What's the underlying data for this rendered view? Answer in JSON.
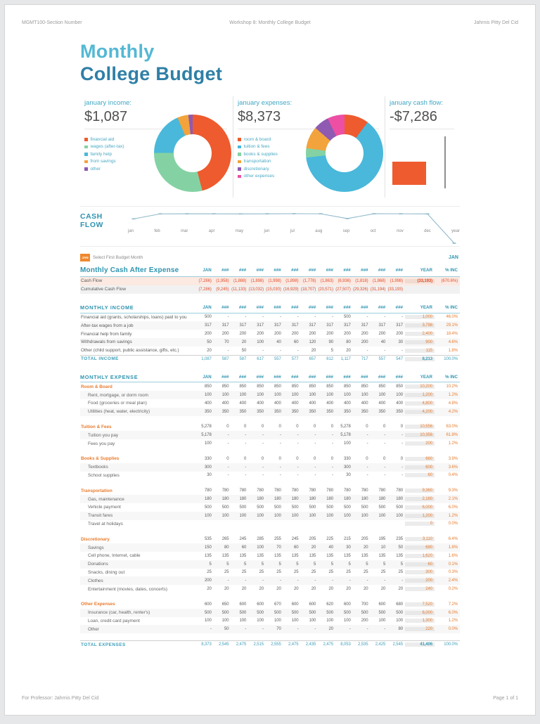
{
  "page_header": {
    "left": "MGMT100-Section Number",
    "center": "Workshop 8: Monthly College Budget",
    "right": "Jahrnis Pitty Del Cid"
  },
  "page_footer": {
    "left": "For Professor: Jahrnis Pitty Del Cid",
    "right": "Page 1 of 1"
  },
  "title": {
    "line1": "Monthly",
    "line2": "College Budget"
  },
  "controls": {
    "month_badge": "JAN",
    "select_label": "Select First Budget Month",
    "right_label": "JAN"
  },
  "chart_data": [
    {
      "id": "income_donut",
      "type": "pie",
      "title": "january income:",
      "total_label": "$1,087",
      "labels": [
        "financial aid",
        "wages (after-tax)",
        "family help",
        "from savings",
        "other"
      ],
      "values": [
        500,
        317,
        200,
        50,
        20
      ],
      "values_pct": [
        46.0,
        29.2,
        18.4,
        4.6,
        1.8
      ],
      "colors": [
        "#ee5b2e",
        "#84d2a4",
        "#49b8da",
        "#f2a33c",
        "#8e5ab2"
      ]
    },
    {
      "id": "expenses_donut",
      "type": "pie",
      "title": "january expenses:",
      "total_label": "$8,373",
      "labels": [
        "room & board",
        "tuition & fees",
        "books & supplies",
        "transportation",
        "discretionary",
        "other expenses"
      ],
      "values": [
        850,
        5278,
        330,
        780,
        535,
        600
      ],
      "values_pct": [
        10.2,
        63.0,
        3.9,
        9.3,
        6.4,
        7.2
      ],
      "colors": [
        "#ee5b2e",
        "#49b8da",
        "#84d2a4",
        "#f2a33c",
        "#8e5ab2",
        "#ec4fa3"
      ]
    },
    {
      "id": "cashflow_bar",
      "type": "bar",
      "title": "january cash flow:",
      "total_label": "-$7,286",
      "values": [
        -7286
      ],
      "color": "#ee5b2e"
    },
    {
      "id": "cashflow_line",
      "type": "line",
      "title": "CASH FLOW",
      "x_labels": [
        "jan",
        "feb",
        "mar",
        "apr",
        "may",
        "jun",
        "jul",
        "aug",
        "sep",
        "oct",
        "nov",
        "dec",
        "year"
      ],
      "values": [
        -7286,
        -1958,
        -1888,
        -1898,
        -1998,
        -1898,
        -1778,
        -1863,
        -6936,
        -1818,
        -1868,
        -1998,
        -33193
      ],
      "color": "#8fb9c9"
    }
  ],
  "table": {
    "columns": [
      "JAN",
      "###",
      "###",
      "###",
      "###",
      "###",
      "###",
      "###",
      "###",
      "###",
      "###",
      "###",
      "YEAR"
    ],
    "pct_header": "% INC",
    "sections": [
      {
        "title": "Monthly Cash After Expense",
        "rows": [
          {
            "type": "cf1",
            "label": "Cash Flow",
            "values": [
              "(7,286)",
              "(1,958)",
              "(1,888)",
              "(1,898)",
              "(1,998)",
              "(1,898)",
              "(1,778)",
              "(1,863)",
              "(6,936)",
              "(1,818)",
              "(1,868)",
              "(1,998)"
            ],
            "year": "(33,193)",
            "pct": "(670.6%)"
          },
          {
            "type": "cf2",
            "label": "Cumulative Cash Flow",
            "values": [
              "(7,286)",
              "(9,245)",
              "(11,133)",
              "(13,032)",
              "(15,030)",
              "(16,929)",
              "(18,707)",
              "(20,571)",
              "(27,507)",
              "(29,326)",
              "(31,194)",
              "(33,193)"
            ],
            "year": "",
            "pct": ""
          }
        ]
      },
      {
        "title": "MONTHLY INCOME",
        "rows": [
          {
            "type": "item",
            "label": "Financial aid (grants, scholarships, loans) paid to you",
            "values": [
              "500",
              "-",
              "-",
              "-",
              "-",
              "-",
              "-",
              "-",
              "500",
              "-",
              "-",
              "-"
            ],
            "year": "1,000",
            "pct": "46.0%"
          },
          {
            "type": "item",
            "label": "After-tax wages from a job",
            "values": [
              "317",
              "317",
              "317",
              "317",
              "317",
              "317",
              "317",
              "317",
              "317",
              "317",
              "317",
              "317"
            ],
            "year": "3,798",
            "pct": "29.1%"
          },
          {
            "type": "item",
            "label": "Financial help from family",
            "values": [
              "200",
              "200",
              "200",
              "200",
              "200",
              "200",
              "200",
              "200",
              "200",
              "200",
              "200",
              "200"
            ],
            "year": "2,400",
            "pct": "18.4%"
          },
          {
            "type": "item",
            "label": "Withdrawals from savings",
            "values": [
              "50",
              "70",
              "20",
              "100",
              "40",
              "60",
              "120",
              "90",
              "80",
              "200",
              "40",
              "30"
            ],
            "year": "900",
            "pct": "4.6%"
          },
          {
            "type": "item",
            "label": "Other (child support, public assistance, gifts, etc.)",
            "values": [
              "20",
              "-",
              "50",
              "-",
              "-",
              "-",
              "20",
              "5",
              "20",
              "-",
              "-",
              "-"
            ],
            "year": "115",
            "pct": "1.8%"
          },
          {
            "type": "total",
            "label": "TOTAL INCOME",
            "values": [
              "1,087",
              "587",
              "587",
              "617",
              "557",
              "577",
              "657",
              "612",
              "1,117",
              "717",
              "557",
              "547"
            ],
            "year": "8,213",
            "pct": "100.0%"
          }
        ]
      },
      {
        "title": "MONTHLY EXPENSE",
        "rows": [
          {
            "type": "cat",
            "label": "Room & Board",
            "values": [
              "850",
              "850",
              "850",
              "850",
              "850",
              "850",
              "850",
              "850",
              "850",
              "850",
              "850",
              "850"
            ],
            "year": "10,200",
            "pct": "10.2%"
          },
          {
            "type": "sub",
            "label": "Rent, mortgage, or dorm room",
            "values": [
              "100",
              "100",
              "100",
              "100",
              "100",
              "100",
              "100",
              "100",
              "100",
              "100",
              "100",
              "100"
            ],
            "year": "1,200",
            "pct": "1.2%"
          },
          {
            "type": "sub",
            "label": "Food (groceries or meal plan)",
            "values": [
              "400",
              "400",
              "400",
              "400",
              "400",
              "400",
              "400",
              "400",
              "400",
              "400",
              "400",
              "400"
            ],
            "year": "4,800",
            "pct": "4.8%"
          },
          {
            "type": "sub",
            "label": "Utilities (heat, water, electricity)",
            "values": [
              "350",
              "350",
              "350",
              "350",
              "350",
              "350",
              "350",
              "350",
              "350",
              "350",
              "350",
              "350"
            ],
            "year": "4,200",
            "pct": "4.2%"
          },
          {
            "type": "gap"
          },
          {
            "type": "cat",
            "label": "Tuition & Fees",
            "values": [
              "5,278",
              "0",
              "0",
              "0",
              "0",
              "0",
              "0",
              "0",
              "5,278",
              "0",
              "0",
              "0"
            ],
            "year": "10,556",
            "pct": "63.0%"
          },
          {
            "type": "sub",
            "label": "Tuition you pay",
            "values": [
              "5,178",
              "-",
              "-",
              "-",
              "-",
              "-",
              "-",
              "-",
              "5,178",
              "-",
              "-",
              "-"
            ],
            "year": "10,356",
            "pct": "61.8%"
          },
          {
            "type": "sub",
            "label": "Fees you pay",
            "values": [
              "100",
              "-",
              "-",
              "-",
              "-",
              "-",
              "-",
              "-",
              "100",
              "-",
              "-",
              "-"
            ],
            "year": "200",
            "pct": "1.2%"
          },
          {
            "type": "gap"
          },
          {
            "type": "cat",
            "label": "Books & Supplies",
            "values": [
              "330",
              "0",
              "0",
              "0",
              "0",
              "0",
              "0",
              "0",
              "330",
              "0",
              "0",
              "0"
            ],
            "year": "660",
            "pct": "3.9%"
          },
          {
            "type": "sub",
            "label": "Textbooks",
            "values": [
              "300",
              "-",
              "-",
              "-",
              "-",
              "-",
              "-",
              "-",
              "300",
              "-",
              "-",
              "-"
            ],
            "year": "600",
            "pct": "3.6%"
          },
          {
            "type": "sub",
            "label": "School supplies",
            "values": [
              "30",
              "-",
              "-",
              "-",
              "-",
              "-",
              "-",
              "-",
              "30",
              "-",
              "-",
              "-"
            ],
            "year": "60",
            "pct": "0.4%"
          },
          {
            "type": "gap"
          },
          {
            "type": "cat",
            "label": "Transportation",
            "values": [
              "780",
              "780",
              "780",
              "780",
              "780",
              "780",
              "780",
              "780",
              "780",
              "780",
              "780",
              "780"
            ],
            "year": "9,360",
            "pct": "9.3%"
          },
          {
            "type": "sub",
            "label": "Gas, maintenance",
            "values": [
              "180",
              "180",
              "180",
              "180",
              "180",
              "180",
              "180",
              "180",
              "180",
              "180",
              "180",
              "180"
            ],
            "year": "2,160",
            "pct": "2.1%"
          },
          {
            "type": "sub",
            "label": "Vehicle payment",
            "values": [
              "500",
              "500",
              "500",
              "500",
              "500",
              "500",
              "500",
              "500",
              "500",
              "500",
              "500",
              "500"
            ],
            "year": "6,000",
            "pct": "6.0%"
          },
          {
            "type": "sub",
            "label": "Transit fares",
            "values": [
              "100",
              "100",
              "100",
              "100",
              "100",
              "100",
              "100",
              "100",
              "100",
              "100",
              "100",
              "100"
            ],
            "year": "1,200",
            "pct": "1.2%"
          },
          {
            "type": "sub",
            "label": "Travel at holidays",
            "values": [
              "",
              "",
              "",
              "",
              "",
              "",
              "",
              "",
              "",
              "",
              "",
              ""
            ],
            "year": "0",
            "pct": "0.0%"
          },
          {
            "type": "gap"
          },
          {
            "type": "cat",
            "label": "Discretionary",
            "values": [
              "535",
              "265",
              "245",
              "285",
              "255",
              "245",
              "205",
              "225",
              "215",
              "205",
              "195",
              "235"
            ],
            "year": "3,110",
            "pct": "6.4%"
          },
          {
            "type": "sub",
            "label": "Savings",
            "values": [
              "150",
              "80",
              "60",
              "100",
              "70",
              "60",
              "20",
              "40",
              "30",
              "20",
              "10",
              "50"
            ],
            "year": "690",
            "pct": "1.8%"
          },
          {
            "type": "sub",
            "label": "Cell phone, Internet, cable",
            "values": [
              "135",
              "135",
              "135",
              "135",
              "135",
              "135",
              "135",
              "135",
              "135",
              "135",
              "135",
              "135"
            ],
            "year": "1,620",
            "pct": "1.6%"
          },
          {
            "type": "sub",
            "label": "Donations",
            "values": [
              "5",
              "5",
              "5",
              "5",
              "5",
              "5",
              "5",
              "5",
              "5",
              "5",
              "5",
              "5"
            ],
            "year": "60",
            "pct": "0.1%"
          },
          {
            "type": "sub",
            "label": "Snacks, dining out",
            "values": [
              "25",
              "25",
              "25",
              "25",
              "25",
              "25",
              "25",
              "25",
              "25",
              "25",
              "25",
              "25"
            ],
            "year": "300",
            "pct": "0.3%"
          },
          {
            "type": "sub",
            "label": "Clothes",
            "values": [
              "200",
              "-",
              "-",
              "-",
              "-",
              "-",
              "-",
              "-",
              "-",
              "-",
              "-",
              "-"
            ],
            "year": "200",
            "pct": "2.4%"
          },
          {
            "type": "sub",
            "label": "Entertainment (movies, dates, concerts)",
            "values": [
              "20",
              "20",
              "20",
              "20",
              "20",
              "20",
              "20",
              "20",
              "20",
              "20",
              "20",
              "20"
            ],
            "year": "240",
            "pct": "0.2%"
          },
          {
            "type": "gap"
          },
          {
            "type": "cat",
            "label": "Other Expenses",
            "values": [
              "600",
              "650",
              "600",
              "600",
              "670",
              "600",
              "600",
              "620",
              "600",
              "700",
              "600",
              "680"
            ],
            "year": "7,520",
            "pct": "7.2%"
          },
          {
            "type": "sub",
            "label": "Insurance (car, health, renter's)",
            "values": [
              "500",
              "500",
              "500",
              "500",
              "500",
              "500",
              "500",
              "500",
              "500",
              "500",
              "500",
              "500"
            ],
            "year": "6,000",
            "pct": "6.0%"
          },
          {
            "type": "sub",
            "label": "Loan, credit card payment",
            "values": [
              "100",
              "100",
              "100",
              "100",
              "100",
              "100",
              "100",
              "100",
              "100",
              "200",
              "100",
              "100"
            ],
            "year": "1,300",
            "pct": "1.2%"
          },
          {
            "type": "sub",
            "label": "Other",
            "values": [
              "-",
              "50",
              "-",
              "-",
              "70",
              "-",
              "-",
              "20",
              "-",
              "-",
              "-",
              "80"
            ],
            "year": "220",
            "pct": "0.0%"
          },
          {
            "type": "gap"
          },
          {
            "type": "total",
            "label": "TOTAL EXPENSES",
            "values": [
              "8,373",
              "2,545",
              "2,475",
              "2,515",
              "2,555",
              "2,475",
              "2,435",
              "2,475",
              "8,053",
              "2,535",
              "2,425",
              "2,545"
            ],
            "year": "41,406",
            "pct": "100.0%"
          }
        ]
      }
    ]
  }
}
